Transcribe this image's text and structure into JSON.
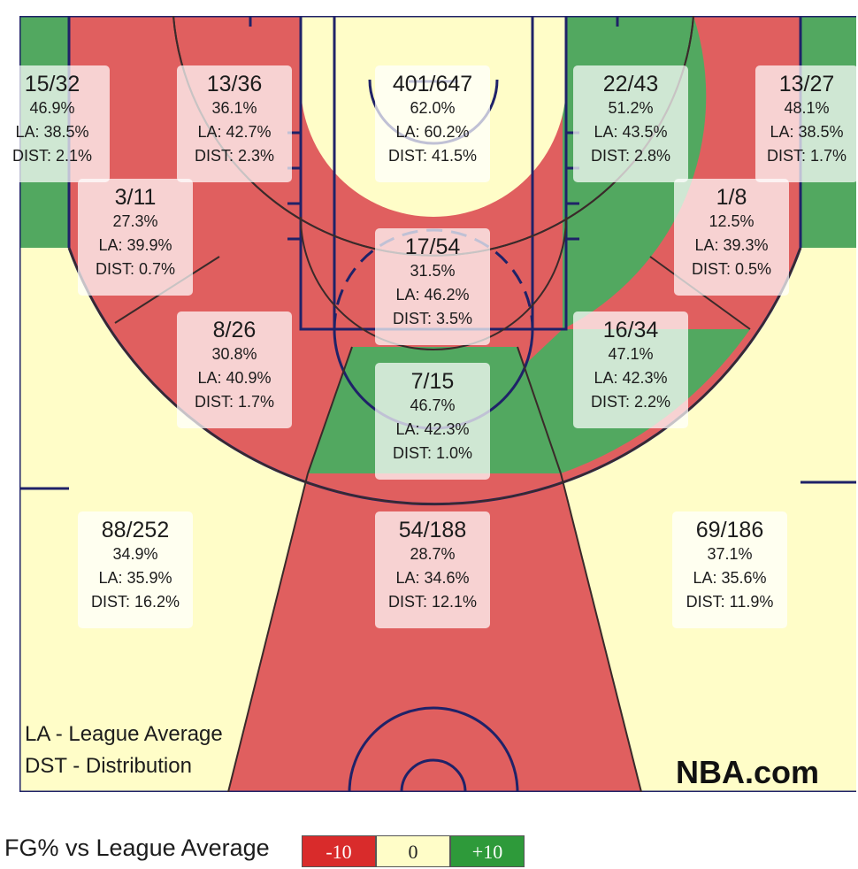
{
  "chart_data": {
    "type": "heatmap",
    "title": "",
    "colors": {
      "below": "#e05f5f",
      "even": "#fffdc8",
      "above": "#52a860",
      "lines": "#1f2268"
    },
    "zones": [
      {
        "id": "left-corner-3",
        "made_attempts": "15/32",
        "fg_pct": "46.9%",
        "league_avg": "LA: 38.5%",
        "distribution": "DIST: 2.1%",
        "rating": "above"
      },
      {
        "id": "left-baseline-mid",
        "made_attempts": "13/36",
        "fg_pct": "36.1%",
        "league_avg": "LA: 42.7%",
        "distribution": "DIST: 2.3%",
        "rating": "below"
      },
      {
        "id": "restricted-area",
        "made_attempts": "401/647",
        "fg_pct": "62.0%",
        "league_avg": "LA: 60.2%",
        "distribution": "DIST: 41.5%",
        "rating": "even"
      },
      {
        "id": "right-baseline-mid",
        "made_attempts": "22/43",
        "fg_pct": "51.2%",
        "league_avg": "LA: 43.5%",
        "distribution": "DIST: 2.8%",
        "rating": "above"
      },
      {
        "id": "right-corner-3",
        "made_attempts": "13/27",
        "fg_pct": "48.1%",
        "league_avg": "LA: 38.5%",
        "distribution": "DIST: 1.7%",
        "rating": "above"
      },
      {
        "id": "left-short-mid",
        "made_attempts": "3/11",
        "fg_pct": "27.3%",
        "league_avg": "LA: 39.9%",
        "distribution": "DIST: 0.7%",
        "rating": "below"
      },
      {
        "id": "paint-non-ra",
        "made_attempts": "17/54",
        "fg_pct": "31.5%",
        "league_avg": "LA: 46.2%",
        "distribution": "DIST: 3.5%",
        "rating": "below"
      },
      {
        "id": "right-short-mid",
        "made_attempts": "1/8",
        "fg_pct": "12.5%",
        "league_avg": "LA: 39.3%",
        "distribution": "DIST: 0.5%",
        "rating": "below"
      },
      {
        "id": "left-elbow-mid",
        "made_attempts": "8/26",
        "fg_pct": "30.8%",
        "league_avg": "LA: 40.9%",
        "distribution": "DIST: 1.7%",
        "rating": "below"
      },
      {
        "id": "right-elbow-mid",
        "made_attempts": "16/34",
        "fg_pct": "47.1%",
        "league_avg": "LA: 42.3%",
        "distribution": "DIST: 2.2%",
        "rating": "above"
      },
      {
        "id": "top-key-mid",
        "made_attempts": "7/15",
        "fg_pct": "46.7%",
        "league_avg": "LA: 42.3%",
        "distribution": "DIST: 1.0%",
        "rating": "above"
      },
      {
        "id": "left-wing-3",
        "made_attempts": "88/252",
        "fg_pct": "34.9%",
        "league_avg": "LA: 35.9%",
        "distribution": "DIST: 16.2%",
        "rating": "even"
      },
      {
        "id": "top-3",
        "made_attempts": "54/188",
        "fg_pct": "28.7%",
        "league_avg": "LA: 34.6%",
        "distribution": "DIST: 12.1%",
        "rating": "below"
      },
      {
        "id": "right-wing-3",
        "made_attempts": "69/186",
        "fg_pct": "37.1%",
        "league_avg": "LA: 35.6%",
        "distribution": "DIST: 11.9%",
        "rating": "even"
      }
    ],
    "notes": [
      "LA - League Average",
      "DST - Distribution"
    ],
    "legend": {
      "title": "FG% vs League Average",
      "items": [
        "-10",
        "0",
        "+10"
      ]
    }
  },
  "brand": "NBA.com"
}
